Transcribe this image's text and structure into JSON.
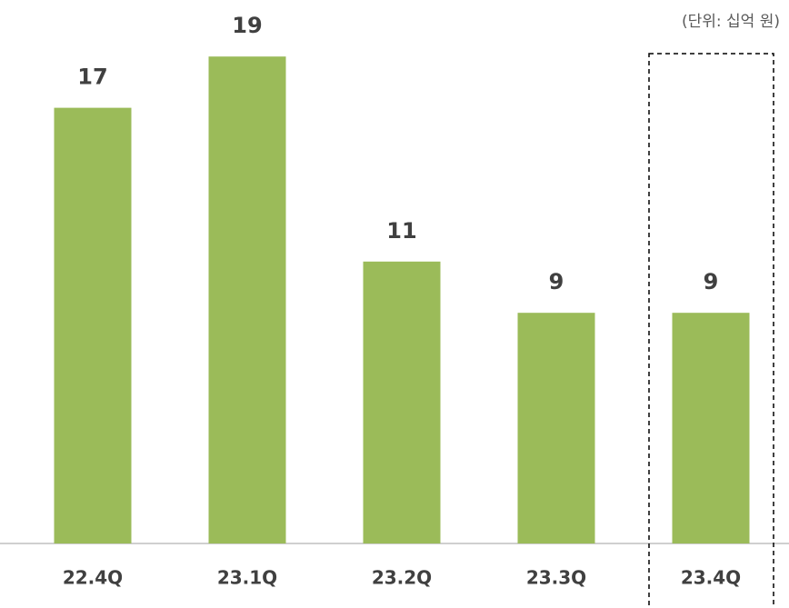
{
  "chart_data": {
    "type": "bar",
    "annotation": "(단위: 십억 원)",
    "categories": [
      "22.4Q",
      "23.1Q",
      "23.2Q",
      "23.3Q",
      "23.4Q"
    ],
    "values": [
      17,
      19,
      11,
      9,
      9
    ],
    "color": "#9bbb59"
  }
}
